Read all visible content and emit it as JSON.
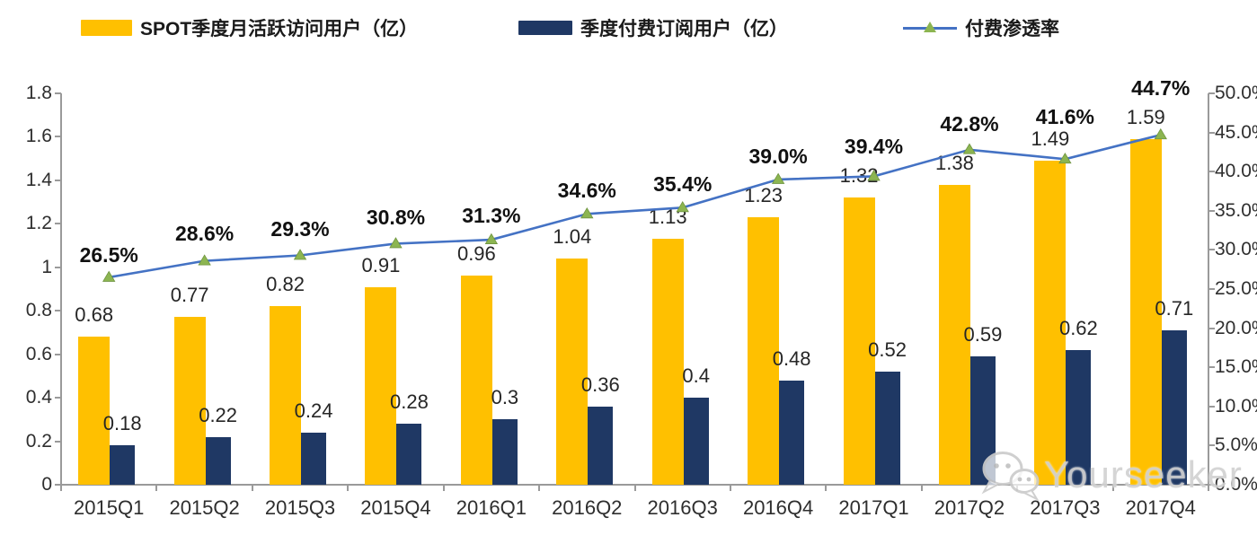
{
  "legend": [
    {
      "label": "SPOT季度月活跃访问用户（亿）",
      "swatch": "bar",
      "color": "#FFC000"
    },
    {
      "label": "季度付费订阅用户（亿）",
      "swatch": "bar",
      "color": "#1F3864"
    },
    {
      "label": "付费渗透率",
      "swatch": "line-marker",
      "line_color": "#4472C4",
      "marker_color": "#8CB551"
    }
  ],
  "watermark": {
    "text": "Yourseeker",
    "icon": "wechat-icon"
  },
  "chart_data": {
    "type": "bar",
    "subtype": "grouped-bars-with-line-overlay",
    "categories": [
      "2015Q1",
      "2015Q2",
      "2015Q3",
      "2015Q4",
      "2016Q1",
      "2016Q2",
      "2016Q3",
      "2016Q4",
      "2017Q1",
      "2017Q2",
      "2017Q3",
      "2017Q4"
    ],
    "series": [
      {
        "name": "SPOT季度月活跃访问用户（亿）",
        "type": "bar",
        "axis": "left",
        "color": "#FFC000",
        "values": [
          0.68,
          0.77,
          0.82,
          0.91,
          0.96,
          1.04,
          1.13,
          1.23,
          1.32,
          1.38,
          1.49,
          1.59
        ],
        "labels": [
          "0.68",
          "0.77",
          "0.82",
          "0.91",
          "0.96",
          "1.04",
          "1.13",
          "1.23",
          "1.32",
          "1.38",
          "1.49",
          "1.59"
        ]
      },
      {
        "name": "季度付费订阅用户（亿）",
        "type": "bar",
        "axis": "left",
        "color": "#1F3864",
        "values": [
          0.18,
          0.22,
          0.24,
          0.28,
          0.3,
          0.36,
          0.4,
          0.48,
          0.52,
          0.59,
          0.62,
          0.71
        ],
        "labels": [
          "0.18",
          "0.22",
          "0.24",
          "0.28",
          "0.3",
          "0.36",
          "0.4",
          "0.48",
          "0.52",
          "0.59",
          "0.62",
          "0.71"
        ]
      },
      {
        "name": "付费渗透率",
        "type": "line",
        "axis": "right",
        "color": "#4472C4",
        "marker": "triangle",
        "marker_color": "#8CB551",
        "values": [
          26.5,
          28.6,
          29.3,
          30.8,
          31.3,
          34.6,
          35.4,
          39.0,
          39.4,
          42.8,
          41.6,
          44.7
        ],
        "labels": [
          "26.5%",
          "28.6%",
          "29.3%",
          "30.8%",
          "31.3%",
          "34.6%",
          "35.4%",
          "39.0%",
          "39.4%",
          "42.8%",
          "41.6%",
          "44.7%"
        ]
      }
    ],
    "left_axis": {
      "min": 0,
      "max": 1.8,
      "step": 0.2,
      "ticks": [
        "1.8",
        "1.6",
        "1.4",
        "1.2",
        "1",
        "0.8",
        "0.6",
        "0.4",
        "0.2",
        "0"
      ]
    },
    "right_axis": {
      "min": 0,
      "max": 50,
      "step": 5,
      "ticks": [
        "50.0%",
        "45.0%",
        "40.0%",
        "35.0%",
        "30.0%",
        "25.0%",
        "20.0%",
        "15.0%",
        "10.0%",
        "5.0%",
        "0.0%"
      ]
    },
    "grid": false,
    "legend_position": "top",
    "pct_label_dy": [
      -13,
      -19,
      -18,
      -17,
      -15,
      -14,
      -14,
      -14,
      -21,
      -17,
      -35,
      -40
    ]
  }
}
